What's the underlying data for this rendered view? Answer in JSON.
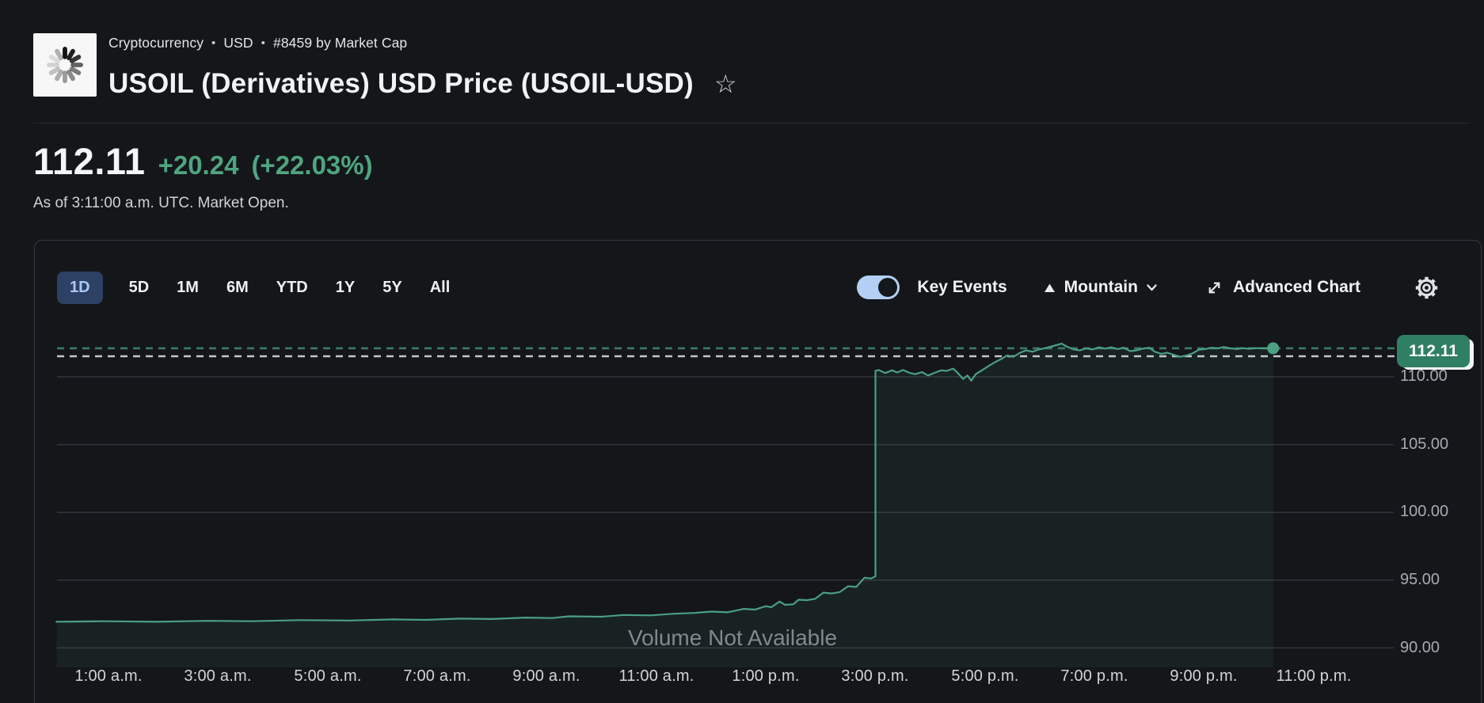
{
  "header": {
    "breadcrumb": {
      "segments": [
        "Cryptocurrency",
        "USD",
        "#8459 by Market Cap"
      ],
      "separator": "•"
    },
    "title": "USOIL (Derivatives) USD Price (USOIL-USD)",
    "favorite_icon_glyph": "☆",
    "logo_icon": "loading-spinner-icon"
  },
  "quote": {
    "price": "112.11",
    "change": "+20.24",
    "change_percent": "(+22.03%)",
    "as_of": "As of 3:11:00 a.m. UTC. Market Open.",
    "up_color": "#4ea580"
  },
  "toolbar": {
    "ranges": [
      {
        "label": "1D",
        "selected": true
      },
      {
        "label": "5D",
        "selected": false
      },
      {
        "label": "1M",
        "selected": false
      },
      {
        "label": "6M",
        "selected": false
      },
      {
        "label": "YTD",
        "selected": false
      },
      {
        "label": "1Y",
        "selected": false
      },
      {
        "label": "5Y",
        "selected": false
      },
      {
        "label": "All",
        "selected": false
      }
    ],
    "key_events_label": "Key Events",
    "key_events_on": true,
    "chart_type_label": "Mountain",
    "advanced_chart_label": "Advanced Chart",
    "toggle_color": "#b3d0f4",
    "selected_tab_bg": "#2d4164"
  },
  "chart_data": {
    "type": "area",
    "title": "USOIL-USD intraday price (1D, mountain)",
    "xlabel": "",
    "ylabel": "",
    "x_axis": {
      "unit": "hour of day (UTC)",
      "tick_hours": [
        1,
        3,
        5,
        7,
        9,
        11,
        13,
        15,
        17,
        19,
        21,
        23
      ],
      "labels": [
        "1:00 a.m.",
        "3:00 a.m.",
        "5:00 a.m.",
        "7:00 a.m.",
        "9:00 a.m.",
        "11:00 a.m.",
        "1:00 p.m.",
        "3:00 p.m.",
        "5:00 p.m.",
        "7:00 p.m.",
        "9:00 p.m.",
        "11:00 p.m."
      ]
    },
    "y_axis": {
      "ticks": [
        110,
        105,
        100,
        95,
        90
      ],
      "labels": [
        "110.00",
        "105.00",
        "100.00",
        "95.00",
        "90.00"
      ],
      "ylim": [
        88.5,
        113.6
      ],
      "grid": true
    },
    "current_price": 112.11,
    "current_price_label": "112.11",
    "reference_lines": [
      {
        "name": "current-price",
        "value": 112.11,
        "style": "dashed",
        "color": "#3d7a62"
      },
      {
        "name": "reference-price",
        "value": 111.52,
        "style": "dashed",
        "color": "#c3c7cc"
      }
    ],
    "volume_note": "Volume Not Available",
    "line_color": "#4b9f82",
    "fill_color": "rgba(75,159,130,0.09)",
    "series": [
      {
        "name": "USOIL-USD",
        "points": [
          [
            0.05,
            91.93
          ],
          [
            0.9,
            91.97
          ],
          [
            1.9,
            91.93
          ],
          [
            2.8,
            92.0
          ],
          [
            3.6,
            91.97
          ],
          [
            4.5,
            92.05
          ],
          [
            5.4,
            92.02
          ],
          [
            6.2,
            92.1
          ],
          [
            6.8,
            92.07
          ],
          [
            7.4,
            92.16
          ],
          [
            8.0,
            92.13
          ],
          [
            8.6,
            92.24
          ],
          [
            9.1,
            92.2
          ],
          [
            9.4,
            92.33
          ],
          [
            10.0,
            92.3
          ],
          [
            10.4,
            92.43
          ],
          [
            10.9,
            92.4
          ],
          [
            11.3,
            92.52
          ],
          [
            11.7,
            92.58
          ],
          [
            12.0,
            92.68
          ],
          [
            12.3,
            92.63
          ],
          [
            12.6,
            92.88
          ],
          [
            12.8,
            92.83
          ],
          [
            13.0,
            93.08
          ],
          [
            13.1,
            93.0
          ],
          [
            13.25,
            93.42
          ],
          [
            13.35,
            93.18
          ],
          [
            13.5,
            93.22
          ],
          [
            13.6,
            93.56
          ],
          [
            13.75,
            93.52
          ],
          [
            13.9,
            93.62
          ],
          [
            14.05,
            94.08
          ],
          [
            14.2,
            94.02
          ],
          [
            14.35,
            94.12
          ],
          [
            14.5,
            94.55
          ],
          [
            14.65,
            94.5
          ],
          [
            14.8,
            95.18
          ],
          [
            14.92,
            95.12
          ],
          [
            15.0,
            95.28
          ],
          [
            15.0,
            110.45
          ],
          [
            15.06,
            110.5
          ],
          [
            15.18,
            110.28
          ],
          [
            15.3,
            110.48
          ],
          [
            15.4,
            110.32
          ],
          [
            15.5,
            110.5
          ],
          [
            15.62,
            110.3
          ],
          [
            15.73,
            110.2
          ],
          [
            15.85,
            110.35
          ],
          [
            15.96,
            110.1
          ],
          [
            16.08,
            110.3
          ],
          [
            16.2,
            110.48
          ],
          [
            16.3,
            110.44
          ],
          [
            16.42,
            110.6
          ],
          [
            16.5,
            110.3
          ],
          [
            16.6,
            109.85
          ],
          [
            16.68,
            110.1
          ],
          [
            16.75,
            109.72
          ],
          [
            16.83,
            110.2
          ],
          [
            16.95,
            110.5
          ],
          [
            17.06,
            110.78
          ],
          [
            17.18,
            111.08
          ],
          [
            17.3,
            111.32
          ],
          [
            17.4,
            111.58
          ],
          [
            17.52,
            111.48
          ],
          [
            17.64,
            111.78
          ],
          [
            17.75,
            111.95
          ],
          [
            17.87,
            111.85
          ],
          [
            17.98,
            112.02
          ],
          [
            18.1,
            112.12
          ],
          [
            18.22,
            112.25
          ],
          [
            18.4,
            112.45
          ],
          [
            18.5,
            112.22
          ],
          [
            18.62,
            112.02
          ],
          [
            18.73,
            111.95
          ],
          [
            18.85,
            112.1
          ],
          [
            18.96,
            112.02
          ],
          [
            19.08,
            112.18
          ],
          [
            19.2,
            112.08
          ],
          [
            19.3,
            112.18
          ],
          [
            19.42,
            112.05
          ],
          [
            19.53,
            112.15
          ],
          [
            19.65,
            111.9
          ],
          [
            19.76,
            111.95
          ],
          [
            19.88,
            112.08
          ],
          [
            20.0,
            112.15
          ],
          [
            20.1,
            111.85
          ],
          [
            20.22,
            111.7
          ],
          [
            20.33,
            111.78
          ],
          [
            20.45,
            111.62
          ],
          [
            20.56,
            111.48
          ],
          [
            20.68,
            111.58
          ],
          [
            20.8,
            111.75
          ],
          [
            20.9,
            112.0
          ],
          [
            21.02,
            112.05
          ],
          [
            21.13,
            112.15
          ],
          [
            21.25,
            112.1
          ],
          [
            21.36,
            112.2
          ],
          [
            21.48,
            112.1
          ],
          [
            21.6,
            112.05
          ],
          [
            21.7,
            112.12
          ],
          [
            21.82,
            112.07
          ],
          [
            21.94,
            112.12
          ],
          [
            22.05,
            112.1
          ],
          [
            22.26,
            112.11
          ]
        ]
      }
    ]
  }
}
